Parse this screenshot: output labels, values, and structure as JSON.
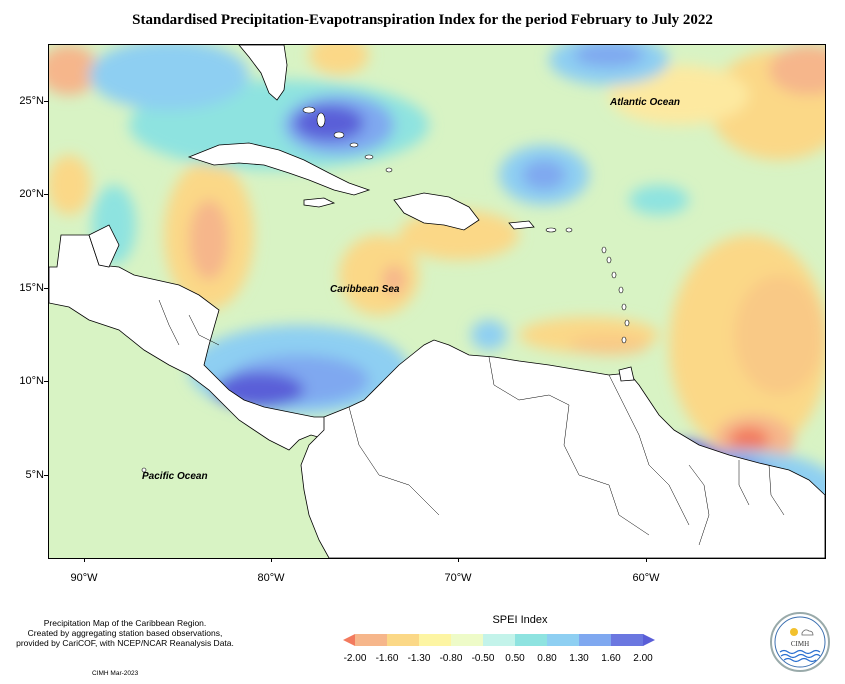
{
  "title": "Standardised Precipitation-Evapotranspiration Index for the period February to July 2022",
  "map": {
    "y_labels": [
      "25°N",
      "20°N",
      "15°N",
      "10°N",
      "5°N"
    ],
    "x_labels": [
      "90°W",
      "80°W",
      "70°W",
      "60°W"
    ],
    "ocean_labels": {
      "atlantic": "Atlantic Ocean",
      "caribbean": "Caribbean Sea",
      "pacific": "Pacific Ocean"
    }
  },
  "footnote": {
    "line1": "Precipitation Map of the Caribbean Region.",
    "line2": "Created by aggregating station based observations,",
    "line3": "provided by CariCOF, with NCEP/NCAR Reanalysis Data."
  },
  "credit": "CIMH Mar-2023",
  "legend": {
    "title": "SPEI Index",
    "labels": [
      "-2.00",
      "-1.60",
      "-1.30",
      "-0.80",
      "-0.50",
      "0.50",
      "0.80",
      "1.30",
      "1.60",
      "2.00"
    ],
    "colors": [
      "#f27a5e",
      "#f6b68b",
      "#fbd887",
      "#fdf5a3",
      "#eefbc8",
      "#c3f3ea",
      "#8ee3e0",
      "#8ecff2",
      "#7fa8f0",
      "#6b77e0",
      "#5a5ed8"
    ]
  },
  "logo": {
    "text": "CIMH"
  }
}
